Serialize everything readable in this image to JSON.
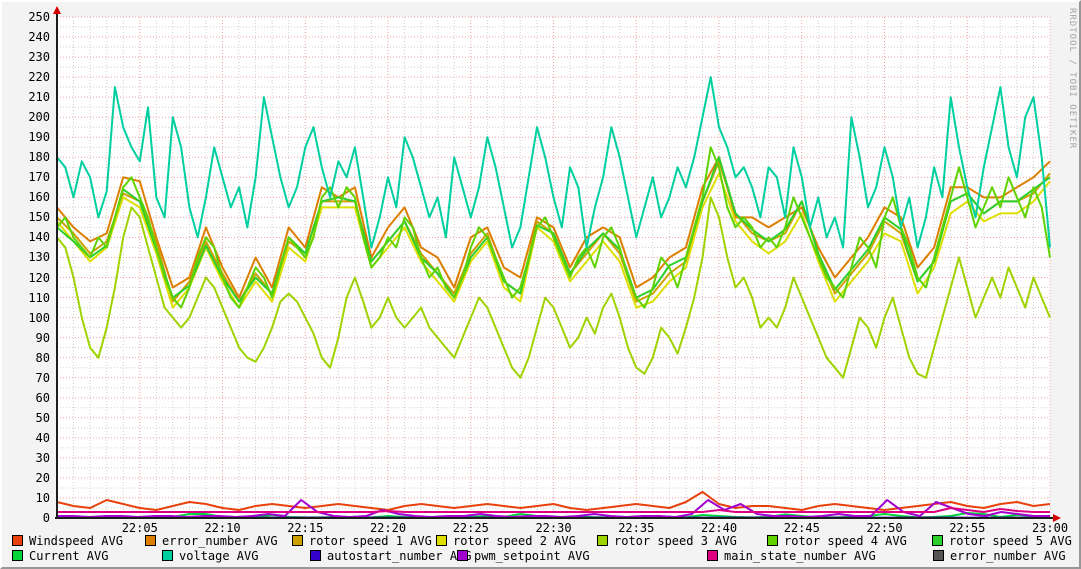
{
  "watermark": "RRDTOOL / TOBI OETIKER",
  "legend": {
    "items": [
      {
        "row": 0,
        "label": "Windspeed AVG",
        "color": "#e8410b"
      },
      {
        "row": 0,
        "label": "error_number AVG",
        "color": "#dd7e00"
      },
      {
        "row": 0,
        "label": "rotor speed 1 AVG",
        "color": "#cda000"
      },
      {
        "row": 0,
        "label": "rotor speed 2 AVG",
        "color": "#dede00"
      },
      {
        "row": 0,
        "label": "rotor speed 3 AVG",
        "color": "#9fd300"
      },
      {
        "row": 0,
        "label": "rotor speed 4 AVG",
        "color": "#5fd300"
      },
      {
        "row": 0,
        "label": "rotor speed 5 AVG",
        "color": "#2ccf2c"
      },
      {
        "row": 1,
        "label": "Current AVG",
        "color": "#00d53c"
      },
      {
        "row": 1,
        "label": "voltage AVG",
        "color": "#00cfa0"
      },
      {
        "row": 1,
        "label": "autostart_number AVG",
        "color": "#3300cc"
      },
      {
        "row": 1,
        "label": "pwm_setpoint AVG",
        "color": "#a100d0"
      },
      {
        "row": 1,
        "label": "main_state_number AVG",
        "color": "#dd0080"
      },
      {
        "row": 1,
        "label": "error_number AVG",
        "color": "#555555"
      }
    ]
  },
  "chart_data": {
    "type": "line",
    "title": "",
    "xlabel": "",
    "ylabel": "",
    "grid": "on",
    "legend_position": "bottom",
    "x_axis": {
      "span_minutes": 60,
      "start_time": "22:00",
      "end_time": "23:00",
      "minor_grid_minutes": 1,
      "major_grid_minutes": 5,
      "ticks": [
        {
          "m": 5,
          "label": "22:05"
        },
        {
          "m": 10,
          "label": "22:10"
        },
        {
          "m": 15,
          "label": "22:15"
        },
        {
          "m": 20,
          "label": "22:20"
        },
        {
          "m": 25,
          "label": "22:25"
        },
        {
          "m": 30,
          "label": "22:30"
        },
        {
          "m": 35,
          "label": "22:35"
        },
        {
          "m": 40,
          "label": "22:40"
        },
        {
          "m": 45,
          "label": "22:45"
        },
        {
          "m": 50,
          "label": "22:50"
        },
        {
          "m": 55,
          "label": "22:55"
        },
        {
          "m": 60,
          "label": "23:00"
        }
      ]
    },
    "y_axis": {
      "min": 0,
      "max": 250,
      "label_step": 10,
      "minor_step": 5
    },
    "series": [
      {
        "name": "Windspeed AVG",
        "color": "#e8410b",
        "width": 2,
        "values": [
          8,
          6,
          5,
          9,
          7,
          5,
          4,
          6,
          8,
          7,
          5,
          4,
          6,
          7,
          6,
          5,
          6,
          7,
          6,
          5,
          4,
          6,
          7,
          6,
          5,
          6,
          7,
          6,
          5,
          6,
          7,
          5,
          4,
          5,
          6,
          7,
          6,
          5,
          8,
          13,
          7,
          5,
          6,
          6,
          5,
          4,
          6,
          7,
          6,
          5,
          4,
          5,
          6,
          7,
          8,
          6,
          5,
          7,
          8,
          6,
          7
        ]
      },
      {
        "name": "error_number AVG",
        "color": "#dd7e00",
        "width": 2,
        "values": [
          155,
          145,
          138,
          142,
          170,
          168,
          140,
          115,
          120,
          145,
          125,
          110,
          130,
          115,
          145,
          135,
          165,
          160,
          165,
          130,
          145,
          155,
          135,
          130,
          115,
          140,
          145,
          125,
          120,
          150,
          145,
          125,
          140,
          145,
          140,
          115,
          120,
          130,
          135,
          165,
          180,
          150,
          150,
          145,
          150,
          155,
          135,
          120,
          130,
          140,
          155,
          150,
          125,
          135,
          165,
          165,
          160,
          160,
          165,
          170,
          178
        ]
      },
      {
        "name": "rotor speed 1 AVG",
        "color": "#cda000",
        "width": 2,
        "values": [
          150,
          142,
          132,
          138,
          162,
          158,
          138,
          108,
          118,
          138,
          122,
          108,
          122,
          112,
          138,
          132,
          158,
          158,
          158,
          128,
          138,
          148,
          132,
          122,
          112,
          132,
          142,
          118,
          112,
          148,
          142,
          122,
          132,
          142,
          132,
          108,
          112,
          122,
          128,
          158,
          178,
          152,
          142,
          138,
          142,
          158,
          132,
          112,
          122,
          132,
          148,
          142,
          118,
          128,
          158,
          162,
          152,
          158,
          158,
          162,
          172
        ]
      },
      {
        "name": "rotor speed 2 AVG",
        "color": "#dede00",
        "width": 2,
        "values": [
          148,
          138,
          128,
          135,
          160,
          155,
          132,
          105,
          115,
          135,
          118,
          105,
          118,
          108,
          135,
          128,
          155,
          155,
          155,
          125,
          135,
          145,
          128,
          118,
          108,
          128,
          138,
          115,
          108,
          145,
          138,
          118,
          128,
          138,
          128,
          105,
          108,
          118,
          125,
          155,
          172,
          148,
          138,
          132,
          138,
          152,
          128,
          108,
          118,
          128,
          142,
          138,
          112,
          125,
          152,
          158,
          148,
          152,
          152,
          158,
          168
        ]
      },
      {
        "name": "rotor speed 3 AVG",
        "color": "#9fd300",
        "width": 2,
        "values": [
          140,
          135,
          120,
          100,
          85,
          80,
          95,
          115,
          140,
          155,
          150,
          135,
          120,
          105,
          100,
          95,
          100,
          110,
          120,
          115,
          105,
          95,
          85,
          80,
          78,
          85,
          95,
          108,
          112,
          108,
          100,
          92,
          80,
          75,
          90,
          110,
          120,
          108,
          95,
          100,
          110,
          100,
          95,
          100,
          105,
          95,
          90,
          85,
          80,
          90,
          100,
          110,
          105,
          95,
          85,
          75,
          70,
          80,
          95,
          110,
          105,
          95,
          85,
          90,
          100,
          92,
          105,
          112,
          100,
          85,
          75,
          72,
          80,
          95,
          90,
          82,
          95,
          110,
          130,
          160,
          150,
          130,
          115,
          120,
          110,
          95,
          100,
          95,
          105,
          120,
          110,
          100,
          90,
          80,
          75,
          70,
          85,
          100,
          95,
          85,
          100,
          110,
          95,
          80,
          72,
          70,
          85,
          100,
          115,
          130,
          115,
          100,
          110,
          120,
          110,
          125,
          115,
          105,
          120,
          110,
          100
        ]
      },
      {
        "name": "rotor speed 5 AVG",
        "color": "#2ccf2c",
        "width": 2,
        "values": [
          145,
          138,
          130,
          136,
          164,
          158,
          134,
          110,
          116,
          136,
          120,
          108,
          120,
          112,
          140,
          132,
          158,
          160,
          158,
          128,
          138,
          148,
          130,
          122,
          110,
          130,
          140,
          118,
          112,
          146,
          142,
          122,
          134,
          142,
          134,
          110,
          114,
          126,
          130,
          158,
          180,
          152,
          144,
          138,
          144,
          158,
          132,
          114,
          124,
          134,
          150,
          144,
          118,
          128,
          158,
          162,
          152,
          158,
          158,
          164,
          170
        ]
      },
      {
        "name": "rotor speed 4 AVG",
        "color": "#5fd300",
        "width": 2,
        "values": [
          145,
          150,
          140,
          135,
          130,
          140,
          135,
          150,
          165,
          170,
          160,
          150,
          135,
          120,
          110,
          105,
          115,
          130,
          140,
          135,
          120,
          110,
          105,
          115,
          125,
          120,
          110,
          125,
          140,
          135,
          130,
          140,
          160,
          165,
          155,
          165,
          160,
          140,
          125,
          130,
          140,
          135,
          150,
          145,
          130,
          120,
          125,
          115,
          110,
          120,
          135,
          145,
          140,
          130,
          120,
          110,
          115,
          130,
          145,
          150,
          140,
          130,
          120,
          130,
          135,
          125,
          140,
          145,
          135,
          120,
          110,
          105,
          115,
          130,
          125,
          115,
          130,
          145,
          160,
          185,
          175,
          155,
          145,
          150,
          145,
          135,
          140,
          135,
          145,
          160,
          150,
          140,
          130,
          120,
          115,
          110,
          125,
          140,
          135,
          125,
          150,
          160,
          145,
          135,
          120,
          115,
          130,
          145,
          160,
          175,
          160,
          145,
          155,
          165,
          155,
          170,
          160,
          150,
          165,
          155,
          130
        ]
      },
      {
        "name": "Current AVG",
        "color": "#00d53c",
        "width": 2,
        "values": [
          0.3,
          0.3,
          0.3,
          0.5,
          0.3,
          0.3,
          0.3,
          0.5,
          2,
          2,
          0.5,
          0.3,
          0.3,
          1.5,
          0.5,
          0.3,
          0.3,
          0.5,
          0.3,
          0.3,
          1,
          0.5,
          0.3,
          0.3,
          0.3,
          0.5,
          1,
          0.5,
          2,
          1,
          0.3,
          0.3,
          0.5,
          0.3,
          0.3,
          0.5,
          1,
          0.5,
          0.3,
          1.5,
          1,
          0.5,
          0.3,
          0.5,
          1.8,
          1,
          0.3,
          0.3,
          0.5,
          1,
          2,
          1,
          0.3,
          0.5,
          1,
          2.5,
          2,
          0.5,
          1.5,
          1,
          0.5
        ]
      },
      {
        "name": "voltage AVG",
        "color": "#00cfa0",
        "width": 2,
        "values": [
          180,
          175,
          160,
          178,
          170,
          150,
          163,
          215,
          195,
          185,
          178,
          205,
          160,
          150,
          200,
          185,
          155,
          140,
          160,
          185,
          170,
          155,
          165,
          145,
          170,
          210,
          190,
          170,
          155,
          165,
          185,
          195,
          175,
          160,
          178,
          170,
          185,
          160,
          135,
          150,
          170,
          155,
          190,
          180,
          165,
          150,
          160,
          140,
          180,
          165,
          150,
          165,
          190,
          175,
          155,
          135,
          145,
          170,
          195,
          180,
          160,
          145,
          175,
          165,
          135,
          155,
          170,
          195,
          180,
          160,
          140,
          155,
          170,
          150,
          160,
          175,
          165,
          180,
          200,
          220,
          195,
          185,
          170,
          175,
          165,
          150,
          175,
          170,
          150,
          185,
          170,
          145,
          160,
          140,
          150,
          135,
          200,
          180,
          155,
          165,
          185,
          170,
          145,
          160,
          135,
          150,
          175,
          160,
          210,
          185,
          165,
          150,
          175,
          195,
          215,
          185,
          170,
          200,
          210,
          180,
          135
        ]
      },
      {
        "name": "autostart_number AVG",
        "color": "#3300cc",
        "width": 2,
        "values": [
          0.2,
          0.2
        ]
      },
      {
        "name": "pwm_setpoint AVG",
        "color": "#a100d0",
        "width": 2,
        "values": [
          1,
          1,
          0.5,
          1,
          1,
          0.5,
          1,
          1,
          0.5,
          1,
          1,
          0.5,
          1,
          2,
          1,
          9,
          3,
          1,
          0.5,
          1,
          4,
          2,
          1,
          0.5,
          1,
          1,
          2,
          1,
          0.5,
          1,
          1,
          0.5,
          1,
          2,
          1,
          0.5,
          1,
          1,
          0.5,
          2,
          9,
          4,
          7,
          2,
          1,
          1,
          0.5,
          1,
          2,
          1,
          1,
          9,
          3,
          1,
          8,
          5,
          2,
          1,
          3,
          2,
          1,
          1
        ]
      },
      {
        "name": "main_state_number AVG",
        "color": "#dd0080",
        "width": 2,
        "values": [
          3,
          3,
          3,
          3,
          3,
          3,
          3,
          3,
          3,
          3,
          3,
          3,
          3,
          3,
          3,
          3,
          3,
          3,
          3,
          3,
          3.5,
          3,
          3,
          3,
          3,
          3,
          3,
          3,
          3,
          3,
          3,
          3,
          3,
          3,
          3,
          3,
          3,
          3,
          3,
          3,
          4,
          3,
          3,
          3,
          3,
          3,
          3,
          3,
          3,
          3,
          3,
          3,
          3,
          3,
          5,
          4,
          3,
          4.5,
          3.5,
          3,
          3
        ]
      },
      {
        "name": "error_number AVG",
        "color": "#555555",
        "width": 2,
        "values": [
          0,
          0
        ]
      }
    ]
  }
}
